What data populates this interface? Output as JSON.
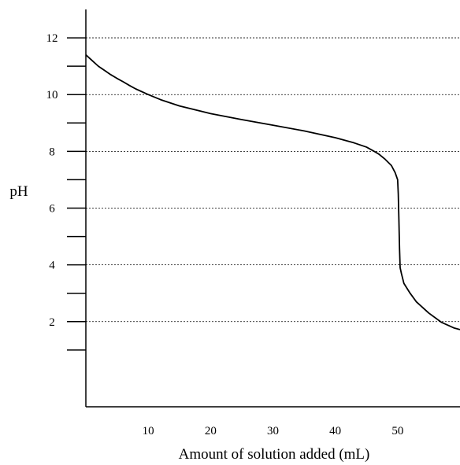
{
  "chart_data": {
    "type": "line",
    "xlabel": "Amount of solution added (mL)",
    "ylabel": "pH",
    "xlim": [
      0,
      60
    ],
    "ylim": [
      -1,
      13
    ],
    "x_ticks": [
      10,
      20,
      30,
      40,
      50
    ],
    "y_major_ticks": [
      2,
      4,
      6,
      8,
      10,
      12
    ],
    "y_minor_ticks": [
      1,
      3,
      5,
      7,
      9,
      11
    ],
    "grid": "horizontal dotted at major ticks",
    "line_color": "#000000",
    "series": [
      {
        "x": [
          0,
          0.5,
          1,
          2,
          3,
          4,
          5,
          6,
          7,
          8,
          10,
          12,
          15,
          20,
          25,
          30,
          35,
          40,
          43,
          45,
          46,
          47,
          48,
          49,
          49.6,
          50,
          50.1,
          50.2,
          50.3,
          50.4,
          50.5,
          50.6,
          51,
          52,
          53,
          55,
          57,
          59,
          60
        ],
        "y": [
          11.4,
          11.3,
          11.2,
          11.0,
          10.85,
          10.7,
          10.57,
          10.45,
          10.32,
          10.2,
          10.0,
          9.82,
          9.6,
          9.33,
          9.12,
          8.92,
          8.72,
          8.48,
          8.3,
          8.15,
          8.03,
          7.9,
          7.72,
          7.5,
          7.25,
          7.0,
          6.5,
          5.6,
          4.6,
          3.9,
          3.8,
          3.7,
          3.35,
          3.0,
          2.7,
          2.3,
          1.98,
          1.78,
          1.72
        ]
      }
    ]
  }
}
